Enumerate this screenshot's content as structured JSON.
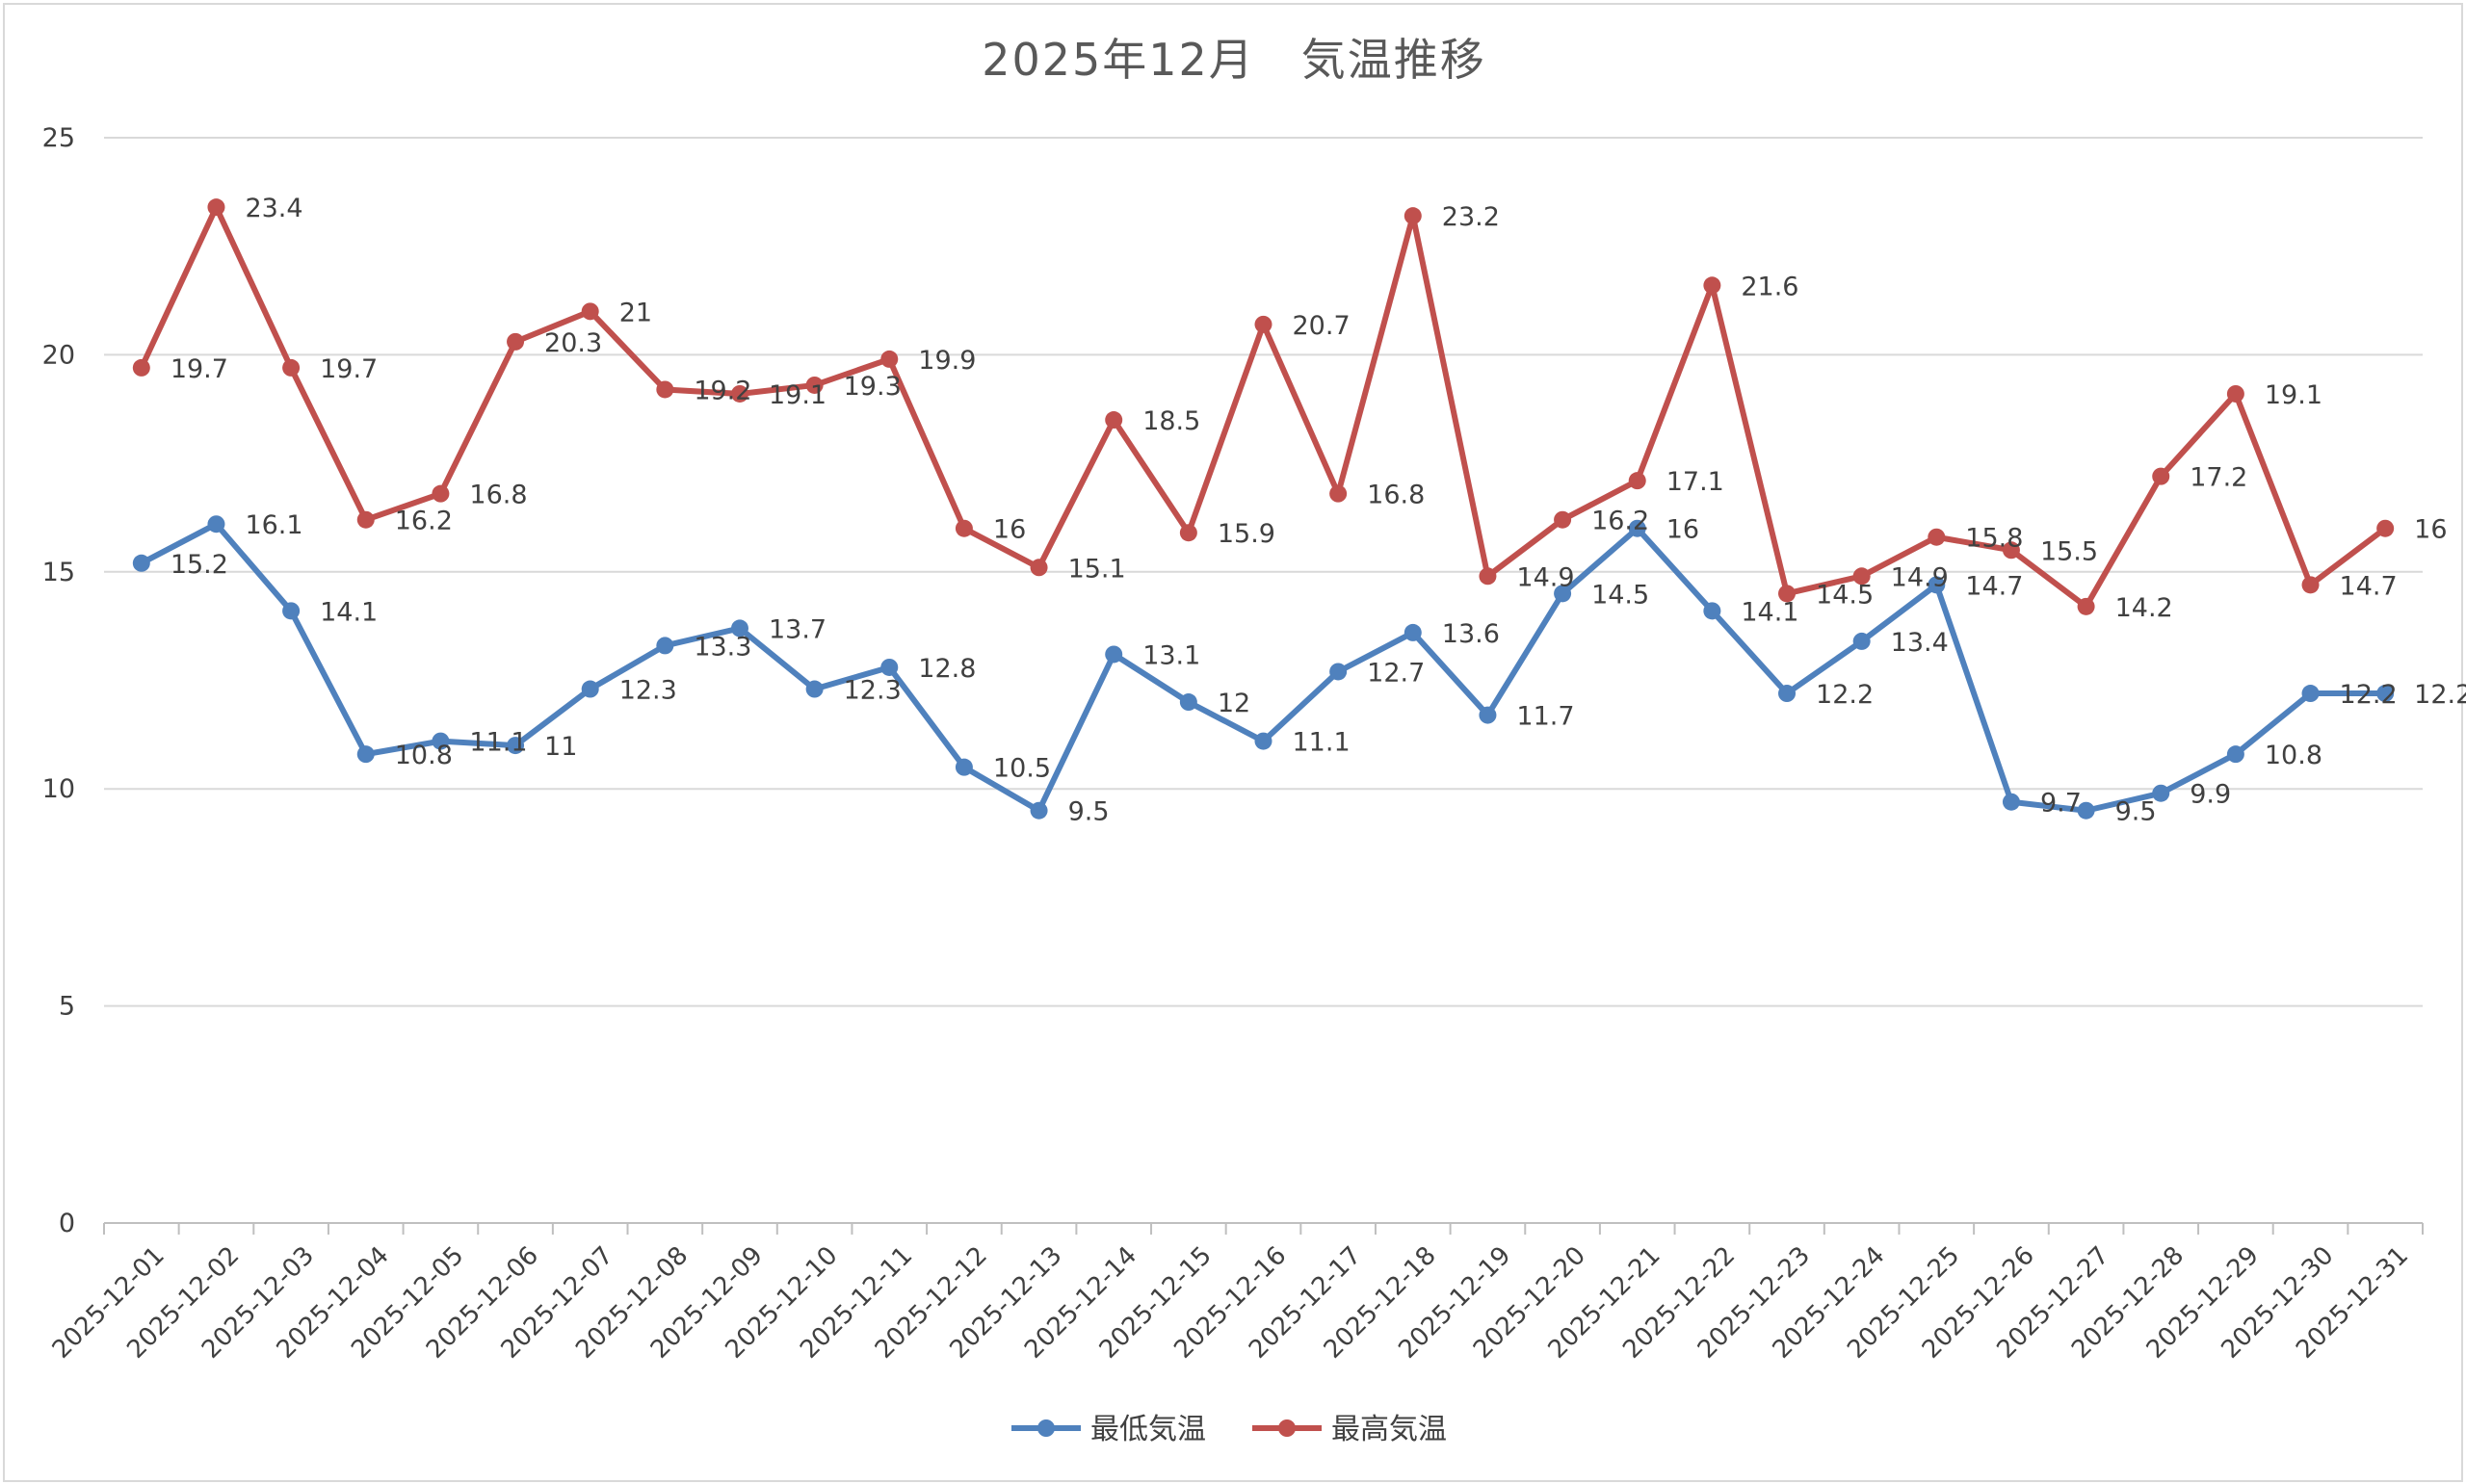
{
  "chart_data": {
    "type": "line",
    "title": "2025年12月　気温推移",
    "xlabel": "",
    "ylabel": "",
    "ylim": [
      0,
      25
    ],
    "yticks": [
      0,
      5,
      10,
      15,
      20,
      25
    ],
    "grid": true,
    "legend_position": "bottom",
    "categories": [
      "2025-12-01",
      "2025-12-02",
      "2025-12-03",
      "2025-12-04",
      "2025-12-05",
      "2025-12-06",
      "2025-12-07",
      "2025-12-08",
      "2025-12-09",
      "2025-12-10",
      "2025-12-11",
      "2025-12-12",
      "2025-12-13",
      "2025-12-14",
      "2025-12-15",
      "2025-12-16",
      "2025-12-17",
      "2025-12-18",
      "2025-12-19",
      "2025-12-20",
      "2025-12-21",
      "2025-12-22",
      "2025-12-23",
      "2025-12-24",
      "2025-12-25",
      "2025-12-26",
      "2025-12-27",
      "2025-12-28",
      "2025-12-29",
      "2025-12-30",
      "2025-12-31"
    ],
    "series": [
      {
        "name": "最低気温",
        "color": "#4f81bd",
        "values": [
          15.2,
          16.1,
          14.1,
          10.8,
          11.1,
          11,
          12.3,
          13.3,
          13.7,
          12.3,
          12.8,
          10.5,
          9.5,
          13.1,
          12,
          11.1,
          12.7,
          13.6,
          11.7,
          14.5,
          16,
          14.1,
          12.2,
          13.4,
          14.7,
          9.7,
          9.5,
          9.9,
          10.8,
          12.2,
          12.2
        ]
      },
      {
        "name": "最高気温",
        "color": "#c0504d",
        "values": [
          19.7,
          23.4,
          19.7,
          16.2,
          16.8,
          20.3,
          21,
          19.2,
          19.1,
          19.3,
          19.9,
          16,
          15.1,
          18.5,
          15.9,
          20.7,
          16.8,
          23.2,
          14.9,
          16.2,
          17.1,
          21.6,
          14.5,
          14.9,
          15.8,
          15.5,
          14.2,
          17.2,
          19.1,
          14.7,
          16
        ]
      }
    ]
  }
}
